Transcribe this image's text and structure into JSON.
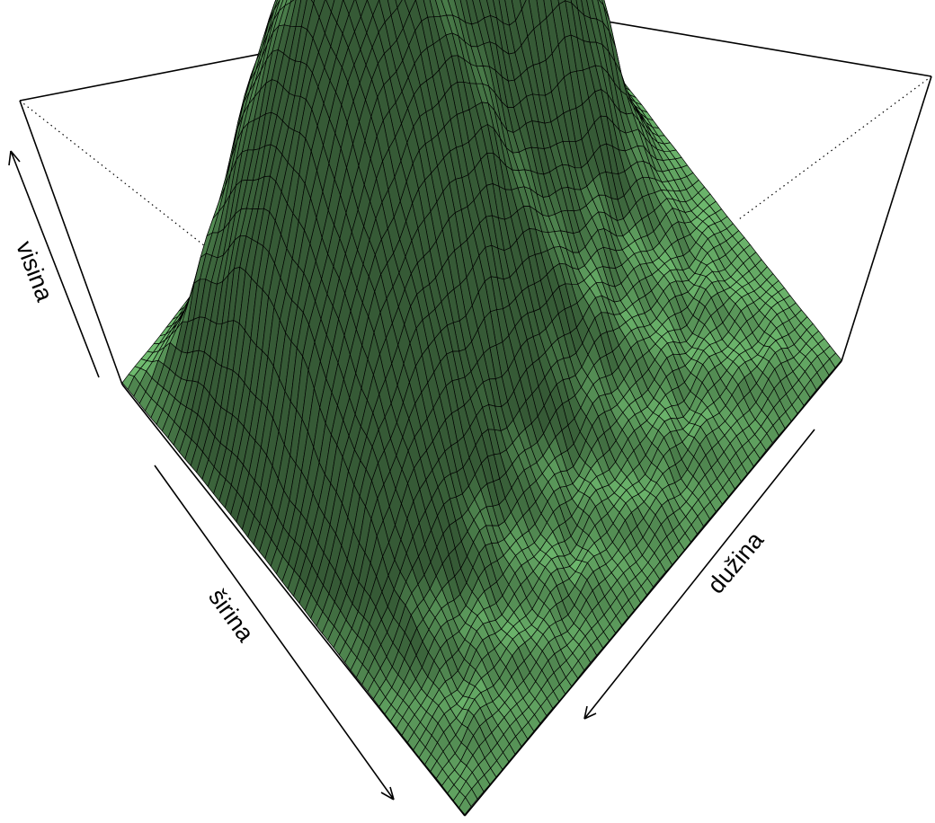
{
  "chart_data": {
    "type": "surface",
    "title": "",
    "xlabel": "dužina",
    "ylabel": "širina",
    "zlabel": "visina",
    "surface_color": "#77C877",
    "mesh_color": "#000000",
    "background": "#FFFFFF",
    "shading": true,
    "box": true,
    "ticks": false
  }
}
